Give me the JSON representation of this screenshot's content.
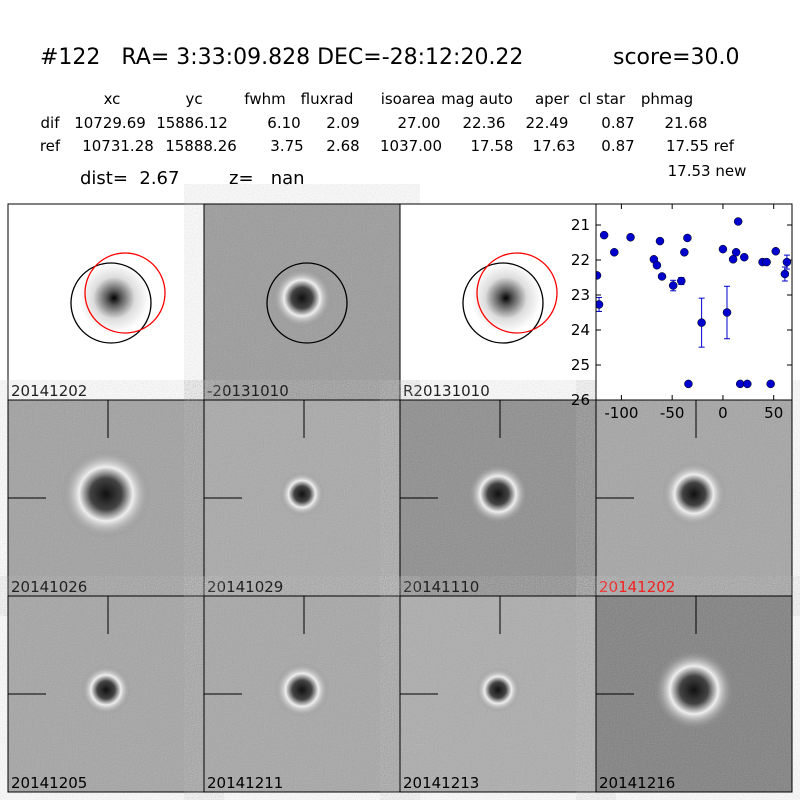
{
  "header": {
    "title": "#122   RA= 3:33:09.828 DEC=-28:12:20.22",
    "score": "score=30.0"
  },
  "table": {
    "columns": [
      "xc",
      "yc",
      "fwhm",
      "fluxrad",
      "isoarea",
      "mag auto",
      "aper",
      "cl star",
      "phmag"
    ],
    "rows": [
      [
        "dif",
        "10729.69",
        "15886.12",
        "6.10",
        "2.09",
        "27.00",
        "22.36",
        "22.49",
        "0.87",
        "21.68"
      ],
      [
        "ref",
        "10731.28",
        "15888.26",
        "3.75",
        "2.68",
        "1037.00",
        "17.58",
        "17.63",
        "0.87",
        "17.55 ref"
      ]
    ],
    "extra": "17.53 new"
  },
  "dist": "dist=  2.67",
  "z": "z=   nan",
  "stamps": [
    {
      "label": "20141202",
      "label_color": "#000000"
    },
    {
      "label": "-20131010",
      "label_color": "#000000"
    },
    {
      "label": "R20131010",
      "label_color": "#000000"
    },
    {
      "label": "20141026",
      "label_color": "#000000"
    },
    {
      "label": "20141029",
      "label_color": "#000000"
    },
    {
      "label": "20141110",
      "label_color": "#000000"
    },
    {
      "label": "20141202",
      "label_color": "#ff0000"
    },
    {
      "label": "20141205",
      "label_color": "#000000"
    },
    {
      "label": "20141211",
      "label_color": "#000000"
    },
    {
      "label": "20141213",
      "label_color": "#000000"
    },
    {
      "label": "20141216",
      "label_color": "#000000"
    }
  ],
  "chart_data": {
    "type": "scatter",
    "color": "#0000cc",
    "invert_y": true,
    "x": [
      -124,
      -122,
      -117,
      -107,
      -91,
      -68,
      -65,
      -62,
      -60,
      -49,
      -41,
      -38,
      -35,
      -34,
      -21,
      0,
      4,
      10,
      13,
      15,
      17,
      21,
      24,
      39,
      43,
      47,
      52,
      61,
      63
    ],
    "values": [
      22.44,
      23.27,
      21.29,
      21.78,
      21.35,
      21.98,
      22.15,
      21.46,
      22.47,
      22.73,
      22.6,
      21.78,
      21.37,
      25.54,
      23.79,
      21.69,
      23.5,
      21.98,
      21.78,
      20.9,
      25.54,
      21.92,
      25.54,
      22.06,
      22.06,
      25.54,
      21.75,
      22.4,
      22.06
    ],
    "errors": [
      0,
      0.2,
      0,
      0,
      0,
      0,
      0,
      0,
      0,
      0.15,
      0.1,
      0,
      0,
      0,
      0.7,
      0,
      0.75,
      0,
      0,
      0,
      0,
      0,
      0,
      0,
      0,
      0,
      0,
      0.2,
      0.2
    ],
    "xlim": [
      -125,
      68
    ],
    "ylim": [
      20.4,
      26
    ],
    "xticks": [
      -100,
      -50,
      0,
      50
    ],
    "yticks": [
      21,
      22,
      23,
      24,
      25,
      26
    ]
  }
}
